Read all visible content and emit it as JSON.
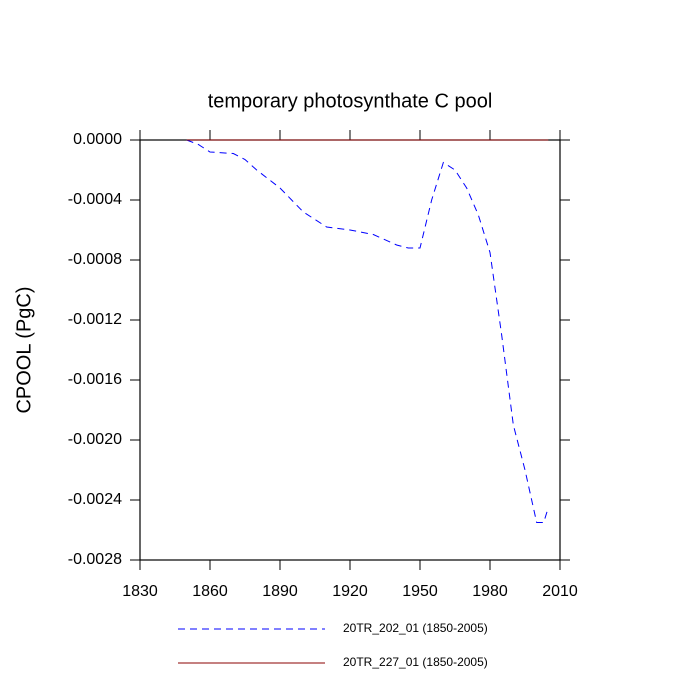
{
  "chart_data": {
    "type": "line",
    "title": "temporary photosynthate C pool",
    "y_label": "CPOOL  (PgC)",
    "x": [
      1850,
      1855,
      1860,
      1870,
      1875,
      1880,
      1890,
      1900,
      1910,
      1920,
      1930,
      1940,
      1945,
      1950,
      1955,
      1960,
      1965,
      1970,
      1975,
      1980,
      1985,
      1990,
      1995,
      2000,
      2003,
      2005
    ],
    "series": [
      {
        "name": "20TR_202_01 (1850-2005)",
        "color": "#0000ff",
        "dash": true,
        "values": [
          0,
          -3e-05,
          -8e-05,
          -9e-05,
          -0.00013,
          -0.0002,
          -0.00032,
          -0.00048,
          -0.00058,
          -0.0006,
          -0.00063,
          -0.0007,
          -0.00072,
          -0.00072,
          -0.0004,
          -0.00015,
          -0.0002,
          -0.00032,
          -0.0005,
          -0.00075,
          -0.0013,
          -0.0019,
          -0.0022,
          -0.00255,
          -0.00255,
          -0.00245
        ]
      },
      {
        "name": "20TR_227_01 (1850-2005)",
        "color": "#8b0000",
        "dash": false,
        "values": [
          0,
          0,
          0,
          0,
          0,
          0,
          0,
          0,
          0,
          0,
          0,
          0,
          0,
          0,
          0,
          0,
          0,
          0,
          0,
          0,
          0,
          0,
          0,
          0,
          0,
          0
        ]
      }
    ],
    "xlim": [
      1830,
      2010
    ],
    "xticks": [
      1830,
      1860,
      1890,
      1920,
      1950,
      1980,
      2010
    ],
    "ylim": [
      -0.0028,
      0
    ],
    "yticks": [
      {
        "value": 0,
        "label": "0.0000"
      },
      {
        "value": -0.0004,
        "label": "-0.0004"
      },
      {
        "value": -0.0008,
        "label": "-0.0008"
      },
      {
        "value": -0.0012,
        "label": "-0.0012"
      },
      {
        "value": -0.0016,
        "label": "-0.0016"
      },
      {
        "value": -0.002,
        "label": "-0.0020"
      },
      {
        "value": -0.0024,
        "label": "-0.0024"
      },
      {
        "value": -0.0028,
        "label": "-0.0028"
      }
    ]
  }
}
